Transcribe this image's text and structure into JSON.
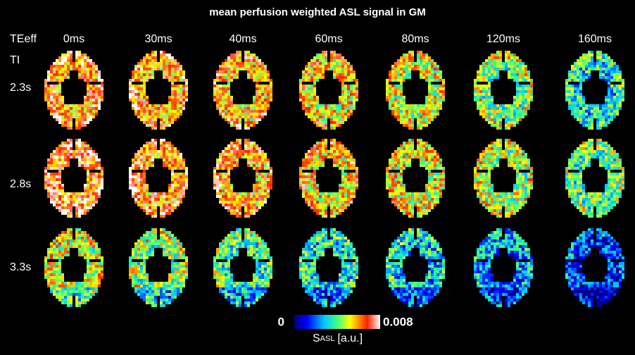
{
  "title": "mean perfusion weighted ASL signal in GM",
  "te_header": "TEeff",
  "ti_header": "TI",
  "te_values": [
    "0ms",
    "30ms",
    "40ms",
    "60ms",
    "80ms",
    "120ms",
    "160ms"
  ],
  "ti_values": [
    "2.3s",
    "2.8s",
    "3.3s"
  ],
  "colorbar": {
    "min_label": "0",
    "max_label": "0.008",
    "symbol": "S",
    "subscript": "ASL",
    "unit": "[a.u.]"
  }
}
